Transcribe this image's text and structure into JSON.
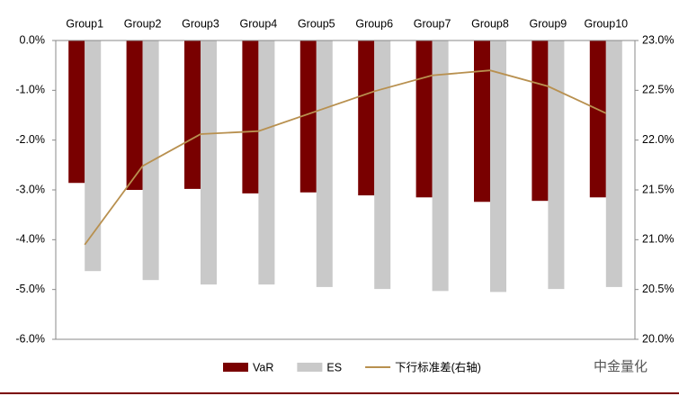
{
  "chart_data": {
    "type": "bar-line",
    "categories": [
      "Group1",
      "Group2",
      "Group3",
      "Group4",
      "Group5",
      "Group6",
      "Group7",
      "Group8",
      "Group9",
      "Group10"
    ],
    "series": [
      {
        "name": "VaR",
        "type": "bar",
        "color": "#790000",
        "values": [
          -2.86,
          -3.0,
          -2.98,
          -3.07,
          -3.05,
          -3.11,
          -3.15,
          -3.24,
          -3.22,
          -3.15
        ]
      },
      {
        "name": "ES",
        "type": "bar",
        "color": "#c9c9c9",
        "values": [
          -4.63,
          -4.81,
          -4.9,
          -4.9,
          -4.95,
          -4.99,
          -5.03,
          -5.05,
          -4.99,
          -4.95
        ]
      },
      {
        "name": "下行标准差(右轴)",
        "type": "line",
        "axis": "y2",
        "color": "#b8904f",
        "values": [
          20.95,
          21.74,
          22.06,
          22.09,
          22.29,
          22.49,
          22.65,
          22.7,
          22.54,
          22.27
        ]
      }
    ],
    "ylim": [
      -6,
      0
    ],
    "yticks": [
      {
        "value": 0,
        "label": "0.0%"
      },
      {
        "value": -1,
        "label": "-1.0%"
      },
      {
        "value": -2,
        "label": "-2.0%"
      },
      {
        "value": -3,
        "label": "-3.0%"
      },
      {
        "value": -4,
        "label": "-4.0%"
      },
      {
        "value": -5,
        "label": "-5.0%"
      },
      {
        "value": -6,
        "label": "-6.0%"
      }
    ],
    "y2lim": [
      20,
      23
    ],
    "y2ticks": [
      {
        "value": 20,
        "label": "20.0%"
      },
      {
        "value": 20.5,
        "label": "20.5%"
      },
      {
        "value": 21,
        "label": "21.0%"
      },
      {
        "value": 21.5,
        "label": "21.5%"
      },
      {
        "value": 22,
        "label": "22.0%"
      },
      {
        "value": 22.5,
        "label": "22.5%"
      },
      {
        "value": 23,
        "label": "23.0%"
      }
    ],
    "watermark": "中金量化"
  }
}
